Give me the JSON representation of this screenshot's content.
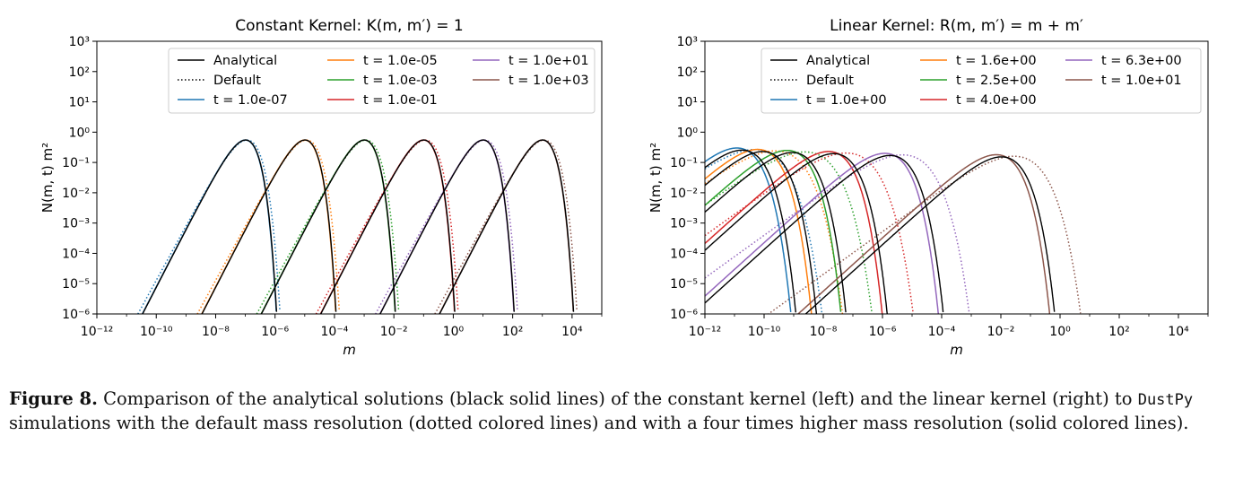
{
  "caption": {
    "label": "Figure 8.",
    "text_before_code": " Comparison of the analytical solutions (black solid lines) of the constant kernel (left) and the linear kernel (right) to ",
    "code": "DustPy",
    "text_after_code": " simulations with the default mass resolution (dotted colored lines) and with a four times higher mass resolution (solid colored lines)."
  },
  "chart_data": [
    {
      "type": "line",
      "title": "Constant Kernel: K(m, m′) = 1",
      "xlabel": "m",
      "ylabel": "N(m, t) m²",
      "xscale": "log",
      "yscale": "log",
      "xlim": [
        1e-12,
        100000.0
      ],
      "ylim": [
        1e-06,
        1000.0
      ],
      "xticks": [
        -12,
        -10,
        -8,
        -6,
        -4,
        -2,
        0,
        2,
        4
      ],
      "yticks": [
        -6,
        -5,
        -4,
        -3,
        -2,
        -1,
        0,
        1,
        2,
        3
      ],
      "grid": false,
      "legend_placement": "top-right",
      "legend_columns": 3,
      "legend": [
        {
          "label": "Analytical",
          "color": "#000000",
          "style": "solid"
        },
        {
          "label": "Default",
          "color": "#000000",
          "style": "dotted"
        },
        {
          "label": "t = 1.0e-07",
          "color": "#1f77b4",
          "style": "solid"
        },
        {
          "label": "t = 1.0e-05",
          "color": "#ff7f0e",
          "style": "solid"
        },
        {
          "label": "t = 1.0e-03",
          "color": "#2ca02c",
          "style": "solid"
        },
        {
          "label": "t = 1.0e-01",
          "color": "#d62728",
          "style": "solid"
        },
        {
          "label": "t = 1.0e+01",
          "color": "#9467bd",
          "style": "solid"
        },
        {
          "label": "t = 1.0e+03",
          "color": "#8c564b",
          "style": "solid"
        }
      ],
      "series": [
        {
          "name": "t = 1.0e-07",
          "color": "#1f77b4",
          "peak_m": 1e-07,
          "peak_y": 0.55
        },
        {
          "name": "t = 1.0e-05",
          "color": "#ff7f0e",
          "peak_m": 1e-05,
          "peak_y": 0.55
        },
        {
          "name": "t = 1.0e-03",
          "color": "#2ca02c",
          "peak_m": 0.001,
          "peak_y": 0.55
        },
        {
          "name": "t = 1.0e-01",
          "color": "#d62728",
          "peak_m": 0.1,
          "peak_y": 0.55
        },
        {
          "name": "t = 1.0e+01",
          "color": "#9467bd",
          "peak_m": 10,
          "peak_y": 0.55
        },
        {
          "name": "t = 1.0e+03",
          "color": "#8c564b",
          "peak_m": 1000,
          "peak_y": 0.55
        }
      ]
    },
    {
      "type": "line",
      "title": "Linear Kernel: R(m, m′) = m + m′",
      "xlabel": "m",
      "ylabel": "N(m, t) m²",
      "xscale": "log",
      "yscale": "log",
      "xlim": [
        1e-12,
        100000.0
      ],
      "ylim": [
        1e-06,
        1000.0
      ],
      "xticks": [
        -12,
        -10,
        -8,
        -6,
        -4,
        -2,
        0,
        2,
        4
      ],
      "yticks": [
        -6,
        -5,
        -4,
        -3,
        -2,
        -1,
        0,
        1,
        2,
        3
      ],
      "grid": false,
      "legend_placement": "top-right",
      "legend_columns": 3,
      "legend": [
        {
          "label": "Analytical",
          "color": "#000000",
          "style": "solid"
        },
        {
          "label": "Default",
          "color": "#000000",
          "style": "dotted"
        },
        {
          "label": "t = 1.0e+00",
          "color": "#1f77b4",
          "style": "solid"
        },
        {
          "label": "t = 1.6e+00",
          "color": "#ff7f0e",
          "style": "solid"
        },
        {
          "label": "t = 2.5e+00",
          "color": "#2ca02c",
          "style": "solid"
        },
        {
          "label": "t = 4.0e+00",
          "color": "#d62728",
          "style": "solid"
        },
        {
          "label": "t = 6.3e+00",
          "color": "#9467bd",
          "style": "solid"
        },
        {
          "label": "t = 1.0e+01",
          "color": "#8c564b",
          "style": "solid"
        }
      ],
      "series": [
        {
          "name": "t = 1.0e+00",
          "color": "#1f77b4",
          "peak_m": 1.2e-11,
          "peak_y": 0.3
        },
        {
          "name": "t = 1.6e+00",
          "color": "#ff7f0e",
          "peak_m": 6e-11,
          "peak_y": 0.27
        },
        {
          "name": "t = 2.5e+00",
          "color": "#2ca02c",
          "peak_m": 6e-10,
          "peak_y": 0.25
        },
        {
          "name": "t = 4.0e+00",
          "color": "#d62728",
          "peak_m": 1.5e-08,
          "peak_y": 0.23
        },
        {
          "name": "t = 6.3e+00",
          "color": "#9467bd",
          "peak_m": 1.2e-06,
          "peak_y": 0.2
        },
        {
          "name": "t = 1.0e+01",
          "color": "#8c564b",
          "peak_m": 0.007,
          "peak_y": 0.18
        }
      ]
    }
  ]
}
